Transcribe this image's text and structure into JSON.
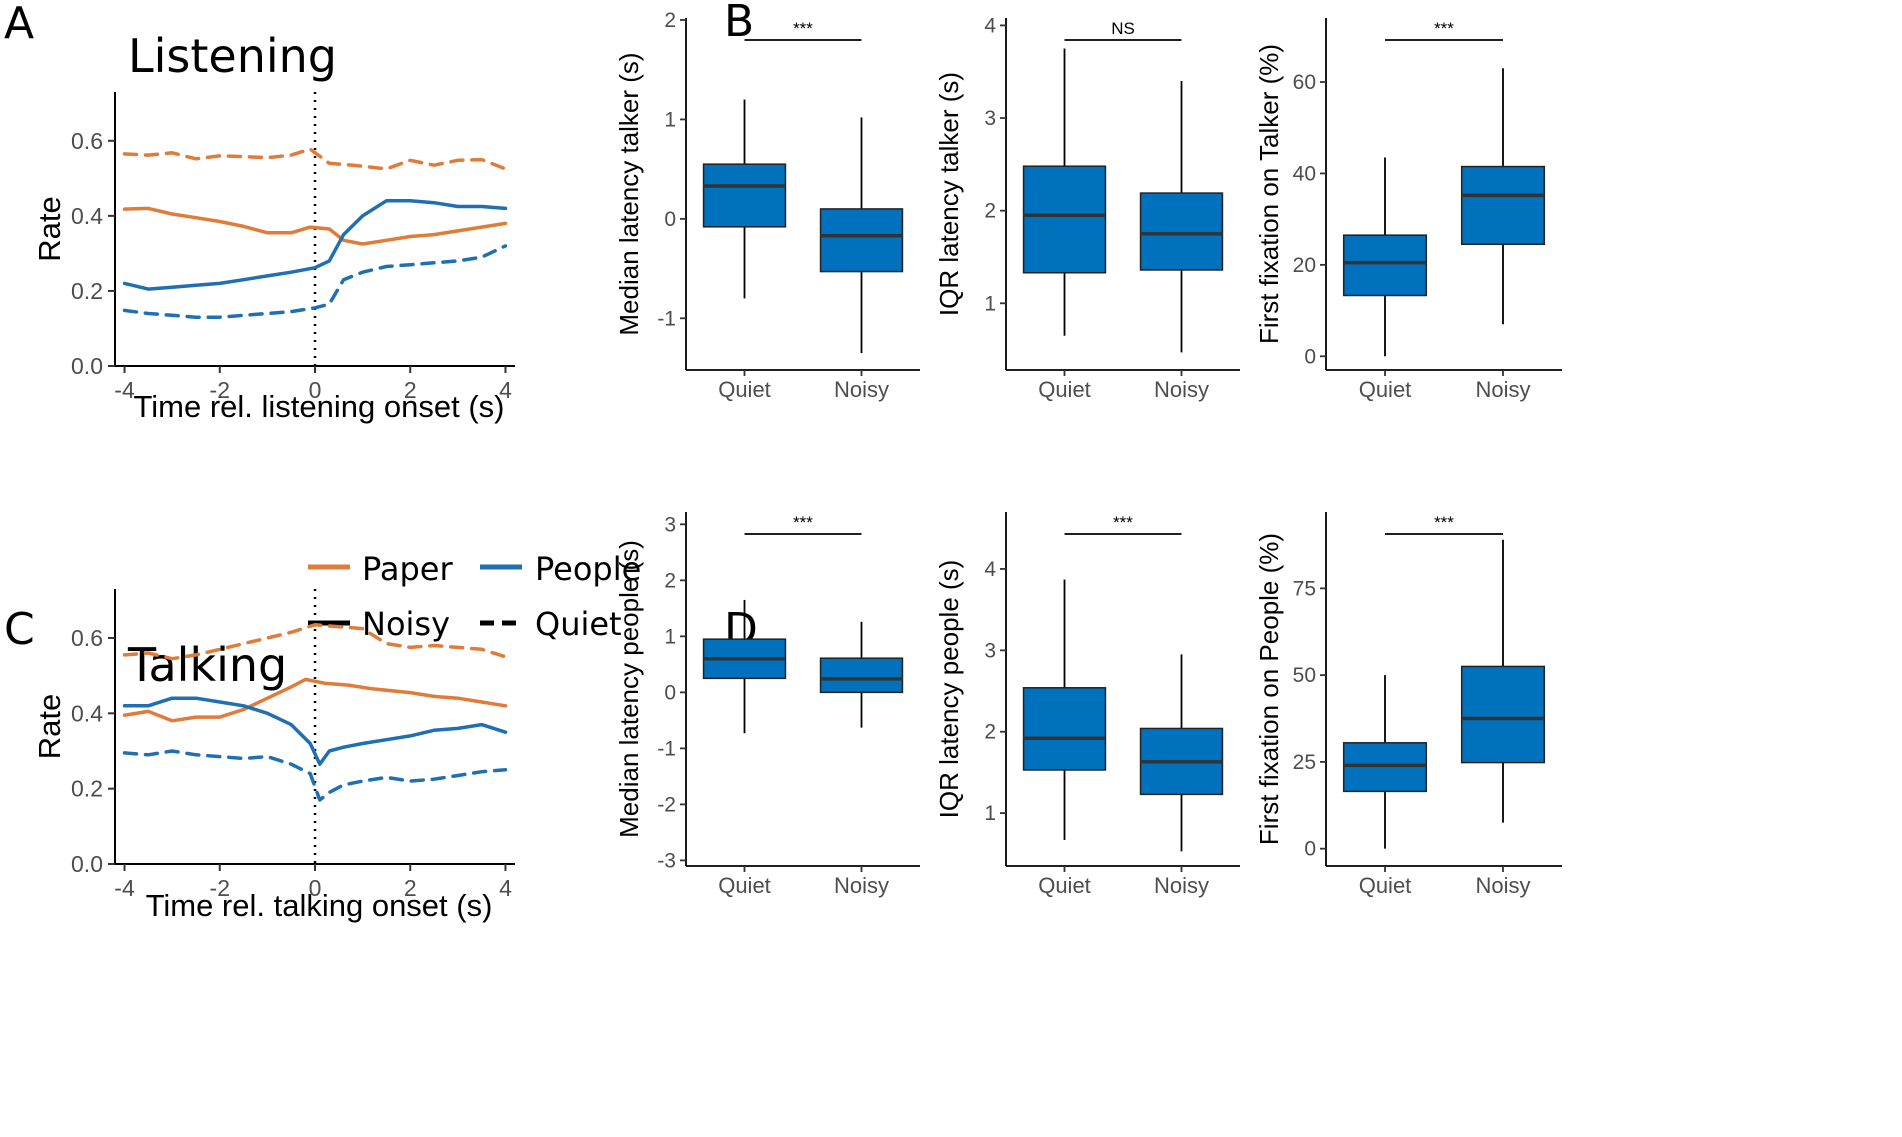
{
  "panel_labels": {
    "a": "A",
    "b": "B",
    "c": "C",
    "d": "D"
  },
  "legend": {
    "paper": "Paper",
    "people": "People",
    "noisy": "Noisy",
    "quiet": "Quiet"
  },
  "colors": {
    "paper": "#e07b39",
    "people": "#1f6fb2",
    "box": "#0072bd",
    "median": "#333333"
  },
  "chart_data": [
    {
      "id": "A",
      "type": "line",
      "title": "Listening",
      "xlabel": "Time rel. listening onset (s)",
      "ylabel": "Rate",
      "xlim": [
        -4.2,
        4.2
      ],
      "ylim": [
        0,
        0.73
      ],
      "xticks": [
        -4,
        -2,
        0,
        2,
        4
      ],
      "xtick_labels": [
        "-4",
        "-2",
        "0",
        "2",
        "4"
      ],
      "yticks": [
        0,
        0.2,
        0.4,
        0.6
      ],
      "ytick_labels": [
        "0.0",
        "0.2",
        "0.4",
        "0.6"
      ],
      "vline_x": 0,
      "series": [
        {
          "name": "Paper Quiet",
          "group": "paper",
          "condition": "quiet",
          "x": [
            -4,
            -3.5,
            -3,
            -2.5,
            -2,
            -1.5,
            -1,
            -0.5,
            -0.1,
            0.3,
            0.8,
            1.5,
            2,
            2.5,
            3,
            3.5,
            4
          ],
          "y": [
            0.565,
            0.562,
            0.568,
            0.552,
            0.56,
            0.558,
            0.555,
            0.562,
            0.578,
            0.54,
            0.535,
            0.525,
            0.548,
            0.535,
            0.548,
            0.55,
            0.525
          ]
        },
        {
          "name": "Paper Noisy",
          "group": "paper",
          "condition": "noisy",
          "x": [
            -4,
            -3.5,
            -3,
            -2.5,
            -2,
            -1.5,
            -1,
            -0.5,
            -0.1,
            0.3,
            0.6,
            1,
            1.5,
            2,
            2.5,
            3,
            3.5,
            4
          ],
          "y": [
            0.418,
            0.42,
            0.405,
            0.395,
            0.385,
            0.372,
            0.355,
            0.355,
            0.37,
            0.365,
            0.335,
            0.325,
            0.335,
            0.345,
            0.35,
            0.36,
            0.37,
            0.38
          ]
        },
        {
          "name": "People Noisy",
          "group": "people",
          "condition": "noisy",
          "x": [
            -4,
            -3.5,
            -3,
            -2.5,
            -2,
            -1.5,
            -1,
            -0.5,
            0,
            0.3,
            0.6,
            1,
            1.5,
            2,
            2.5,
            3,
            3.5,
            4
          ],
          "y": [
            0.22,
            0.205,
            0.21,
            0.215,
            0.22,
            0.23,
            0.24,
            0.25,
            0.262,
            0.28,
            0.35,
            0.4,
            0.44,
            0.44,
            0.435,
            0.425,
            0.425,
            0.42
          ]
        },
        {
          "name": "People Quiet",
          "group": "people",
          "condition": "quiet",
          "x": [
            -4,
            -3.5,
            -3,
            -2.5,
            -2,
            -1.5,
            -1,
            -0.5,
            0,
            0.3,
            0.6,
            1,
            1.5,
            2,
            2.5,
            3,
            3.5,
            4
          ],
          "y": [
            0.148,
            0.14,
            0.135,
            0.13,
            0.13,
            0.135,
            0.14,
            0.145,
            0.155,
            0.165,
            0.23,
            0.25,
            0.265,
            0.27,
            0.275,
            0.28,
            0.29,
            0.32
          ]
        }
      ]
    },
    {
      "id": "C",
      "type": "line",
      "title": "Talking",
      "xlabel": "Time rel. talking onset (s)",
      "ylabel": "Rate",
      "xlim": [
        -4.2,
        4.2
      ],
      "ylim": [
        0,
        0.73
      ],
      "xticks": [
        -4,
        -2,
        0,
        2,
        4
      ],
      "xtick_labels": [
        "-4",
        "-2",
        "0",
        "2",
        "4"
      ],
      "yticks": [
        0,
        0.2,
        0.4,
        0.6
      ],
      "ytick_labels": [
        "0.0",
        "0.2",
        "0.4",
        "0.6"
      ],
      "vline_x": 0,
      "series": [
        {
          "name": "Paper Quiet",
          "group": "paper",
          "condition": "quiet",
          "x": [
            -4,
            -3.5,
            -3,
            -2.5,
            -2,
            -1.5,
            -1,
            -0.5,
            0,
            0.5,
            1,
            1.5,
            2,
            2.5,
            3,
            3.5,
            4
          ],
          "y": [
            0.555,
            0.56,
            0.545,
            0.555,
            0.57,
            0.585,
            0.6,
            0.615,
            0.635,
            0.63,
            0.625,
            0.585,
            0.575,
            0.58,
            0.575,
            0.57,
            0.55
          ]
        },
        {
          "name": "Paper Noisy",
          "group": "paper",
          "condition": "noisy",
          "x": [
            -4,
            -3.5,
            -3,
            -2.5,
            -2,
            -1.5,
            -1,
            -0.5,
            -0.2,
            0.2,
            0.7,
            1.2,
            2,
            2.5,
            3,
            3.5,
            4
          ],
          "y": [
            0.395,
            0.405,
            0.38,
            0.39,
            0.39,
            0.41,
            0.44,
            0.47,
            0.49,
            0.48,
            0.475,
            0.465,
            0.455,
            0.445,
            0.44,
            0.43,
            0.42
          ]
        },
        {
          "name": "People Noisy",
          "group": "people",
          "condition": "noisy",
          "x": [
            -4,
            -3.5,
            -3,
            -2.5,
            -2,
            -1.5,
            -1,
            -0.5,
            -0.1,
            0.1,
            0.3,
            0.6,
            1,
            1.5,
            2,
            2.5,
            3,
            3.5,
            4
          ],
          "y": [
            0.42,
            0.42,
            0.44,
            0.44,
            0.43,
            0.42,
            0.4,
            0.37,
            0.32,
            0.265,
            0.3,
            0.31,
            0.32,
            0.33,
            0.34,
            0.355,
            0.36,
            0.37,
            0.35
          ]
        },
        {
          "name": "People Quiet",
          "group": "people",
          "condition": "quiet",
          "x": [
            -4,
            -3.5,
            -3,
            -2.5,
            -2,
            -1.5,
            -1,
            -0.5,
            -0.1,
            0.1,
            0.3,
            0.6,
            1,
            1.5,
            2,
            2.5,
            3,
            3.5,
            4
          ],
          "y": [
            0.295,
            0.29,
            0.3,
            0.29,
            0.285,
            0.28,
            0.285,
            0.265,
            0.24,
            0.17,
            0.19,
            0.21,
            0.22,
            0.23,
            0.22,
            0.225,
            0.235,
            0.245,
            0.25
          ]
        }
      ]
    },
    {
      "id": "B1",
      "type": "boxplot",
      "ylabel": "Median latency talker (s)",
      "ylim": [
        -1.52,
        2.02
      ],
      "yticks": [
        -1,
        0,
        1,
        2
      ],
      "ytick_labels": [
        "-1",
        "0",
        "1",
        "2"
      ],
      "categories": [
        "Quiet",
        "Noisy"
      ],
      "boxes": [
        {
          "category": "Quiet",
          "whisker_low": -0.8,
          "q1": -0.08,
          "median": 0.33,
          "q3": 0.55,
          "whisker_high": 1.2
        },
        {
          "category": "Noisy",
          "whisker_low": -1.35,
          "q1": -0.53,
          "median": -0.17,
          "q3": 0.1,
          "whisker_high": 1.02
        }
      ],
      "significance": "***"
    },
    {
      "id": "B2",
      "type": "boxplot",
      "ylabel": "IQR latency talker (s)",
      "ylim": [
        0.28,
        4.08
      ],
      "yticks": [
        1,
        2,
        3,
        4
      ],
      "ytick_labels": [
        "1",
        "2",
        "3",
        "4"
      ],
      "categories": [
        "Quiet",
        "Noisy"
      ],
      "boxes": [
        {
          "category": "Quiet",
          "whisker_low": 0.65,
          "q1": 1.33,
          "median": 1.95,
          "q3": 2.48,
          "whisker_high": 3.75
        },
        {
          "category": "Noisy",
          "whisker_low": 0.47,
          "q1": 1.36,
          "median": 1.75,
          "q3": 2.19,
          "whisker_high": 3.4
        }
      ],
      "significance": "NS"
    },
    {
      "id": "B3",
      "type": "boxplot",
      "ylabel": "First fixation on Talker (%)",
      "ylim": [
        -3,
        74
      ],
      "yticks": [
        0,
        20,
        40,
        60
      ],
      "ytick_labels": [
        "0",
        "20",
        "40",
        "60"
      ],
      "categories": [
        "Quiet",
        "Noisy"
      ],
      "boxes": [
        {
          "category": "Quiet",
          "whisker_low": 0,
          "q1": 13.3,
          "median": 20.5,
          "q3": 26.5,
          "whisker_high": 43.5
        },
        {
          "category": "Noisy",
          "whisker_low": 7,
          "q1": 24.5,
          "median": 35.2,
          "q3": 41.5,
          "whisker_high": 63
        }
      ],
      "significance": "***"
    },
    {
      "id": "D1",
      "type": "boxplot",
      "ylabel": "Median latency people (s)",
      "ylim": [
        -3.1,
        3.22
      ],
      "yticks": [
        -3,
        -2,
        -1,
        0,
        1,
        2,
        3
      ],
      "ytick_labels": [
        "-3",
        "-2",
        "-1",
        "0",
        "1",
        "2",
        "3"
      ],
      "categories": [
        "Quiet",
        "Noisy"
      ],
      "boxes": [
        {
          "category": "Quiet",
          "whisker_low": -0.73,
          "q1": 0.25,
          "median": 0.6,
          "q3": 0.95,
          "whisker_high": 1.65
        },
        {
          "category": "Noisy",
          "whisker_low": -0.63,
          "q1": 0.0,
          "median": 0.24,
          "q3": 0.61,
          "whisker_high": 1.26
        }
      ],
      "significance": "***"
    },
    {
      "id": "D2",
      "type": "boxplot",
      "ylabel": "IQR latency people (s)",
      "ylim": [
        0.35,
        4.7
      ],
      "yticks": [
        1,
        2,
        3,
        4
      ],
      "ytick_labels": [
        "1",
        "2",
        "3",
        "4"
      ],
      "categories": [
        "Quiet",
        "Noisy"
      ],
      "boxes": [
        {
          "category": "Quiet",
          "whisker_low": 0.67,
          "q1": 1.53,
          "median": 1.92,
          "q3": 2.54,
          "whisker_high": 3.87
        },
        {
          "category": "Noisy",
          "whisker_low": 0.53,
          "q1": 1.23,
          "median": 1.63,
          "q3": 2.04,
          "whisker_high": 2.95
        }
      ],
      "significance": "***"
    },
    {
      "id": "D3",
      "type": "boxplot",
      "ylabel": "First fixation on People (%)",
      "ylim": [
        -5,
        97
      ],
      "yticks": [
        0,
        25,
        50,
        75
      ],
      "ytick_labels": [
        "0",
        "25",
        "50",
        "75"
      ],
      "categories": [
        "Quiet",
        "Noisy"
      ],
      "boxes": [
        {
          "category": "Quiet",
          "whisker_low": 0,
          "q1": 16.5,
          "median": 24,
          "q3": 30.5,
          "whisker_high": 50
        },
        {
          "category": "Noisy",
          "whisker_low": 7.5,
          "q1": 24.8,
          "median": 37.5,
          "q3": 52.5,
          "whisker_high": 89
        }
      ],
      "significance": "***"
    }
  ]
}
